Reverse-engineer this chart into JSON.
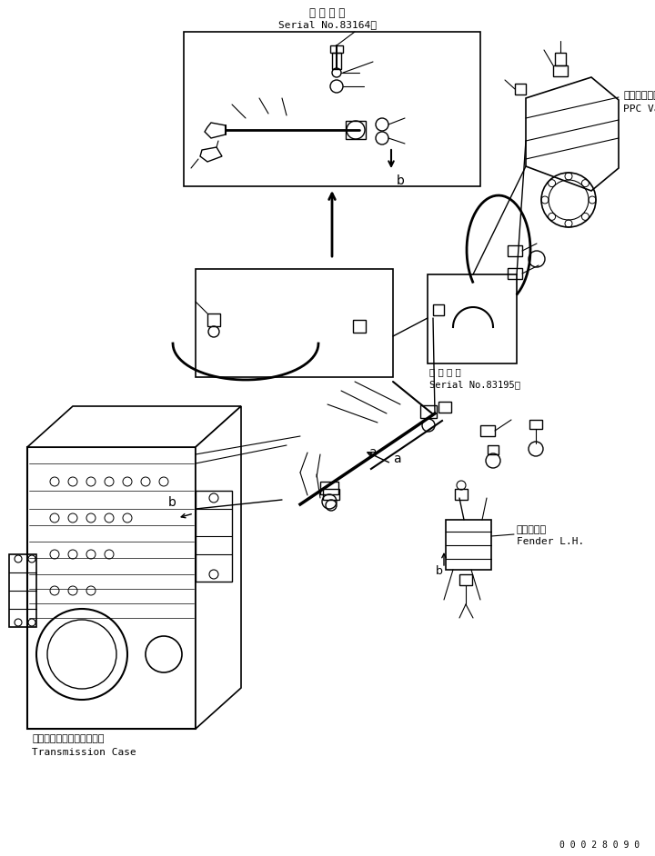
{
  "bg_color": "#ffffff",
  "lc": "#000000",
  "fig_width": 7.2,
  "fig_height": 9.42,
  "dpi": 100,
  "labels": {
    "top_serial_jp": "適 用 号 機",
    "top_serial_en": "Serial No.83164～",
    "mid_serial_jp": "適 用 号 機",
    "mid_serial_en": "Serial No.83195～",
    "ppc_valve_jp": "ＰＰＣバルブ",
    "ppc_valve_en": "PPC Valve",
    "fender_jp": "フェンダ左",
    "fender_en": "Fender L.H.",
    "trans_jp": "トランスミッションケース",
    "trans_en": "Transmission Case",
    "label_a": "a",
    "label_b_main": "b",
    "label_b_box": "b",
    "part_number": "0 0 0 2 8 0 9 0"
  }
}
